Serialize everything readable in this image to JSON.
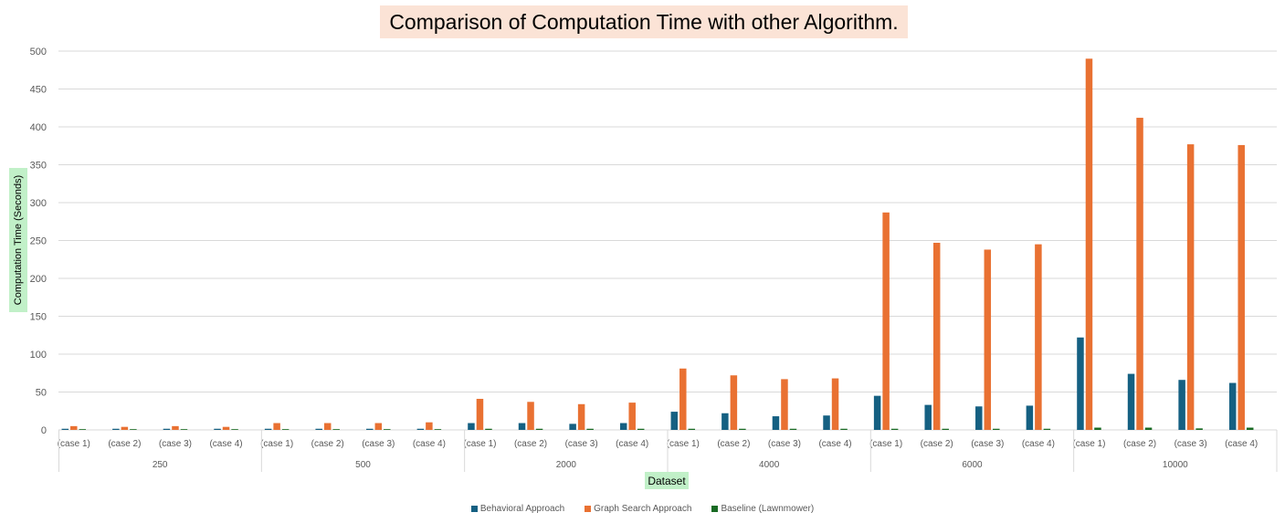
{
  "chart_data": {
    "type": "bar",
    "title": "Comparison of Computation Time with other Algorithm.",
    "xlabel": "Dataset",
    "ylabel": "Computation Time (Seconds)",
    "ylim": [
      0,
      500
    ],
    "yticks": [
      0,
      50,
      100,
      150,
      200,
      250,
      300,
      350,
      400,
      450,
      500
    ],
    "grid": true,
    "legend_position": "bottom",
    "groups": [
      "250",
      "500",
      "2000",
      "4000",
      "6000",
      "10000"
    ],
    "cases": [
      "(case 1)",
      "(case 2)",
      "(case 3)",
      "(case 4)"
    ],
    "categories": [
      "250 (case 1)",
      "250 (case 2)",
      "250 (case 3)",
      "250 (case 4)",
      "500 (case 1)",
      "500 (case 2)",
      "500 (case 3)",
      "500 (case 4)",
      "2000 (case 1)",
      "2000 (case 2)",
      "2000 (case 3)",
      "2000 (case 4)",
      "4000 (case 1)",
      "4000 (case 2)",
      "4000 (case 3)",
      "4000 (case 4)",
      "6000 (case 1)",
      "6000 (case 2)",
      "6000 (case 3)",
      "6000 (case 4)",
      "10000 (case 1)",
      "10000 (case 2)",
      "10000 (case 3)",
      "10000 (case 4)"
    ],
    "series": [
      {
        "name": "Behavioral Approach",
        "color": "#156082",
        "values": [
          1.5,
          1.5,
          1.5,
          1.5,
          1.5,
          1.5,
          1.5,
          1.5,
          9,
          9,
          8,
          9,
          24,
          22,
          18,
          19,
          45,
          33,
          31,
          32,
          122,
          74,
          66,
          62
        ]
      },
      {
        "name": "Graph Search Approach",
        "color": "#e97132",
        "values": [
          5,
          4,
          5,
          4,
          9,
          9,
          9,
          10,
          41,
          37,
          34,
          36,
          81,
          72,
          67,
          68,
          287,
          247,
          238,
          245,
          490,
          412,
          377,
          376
        ]
      },
      {
        "name": "Baseline (Lawnmower)",
        "color": "#196b24",
        "values": [
          1,
          1,
          1,
          1,
          1,
          1,
          1,
          1,
          1.5,
          1.5,
          1.5,
          1.5,
          1.5,
          1.5,
          1.5,
          1.5,
          1.5,
          1.5,
          1.5,
          1.5,
          3,
          3,
          2,
          3
        ]
      }
    ]
  }
}
